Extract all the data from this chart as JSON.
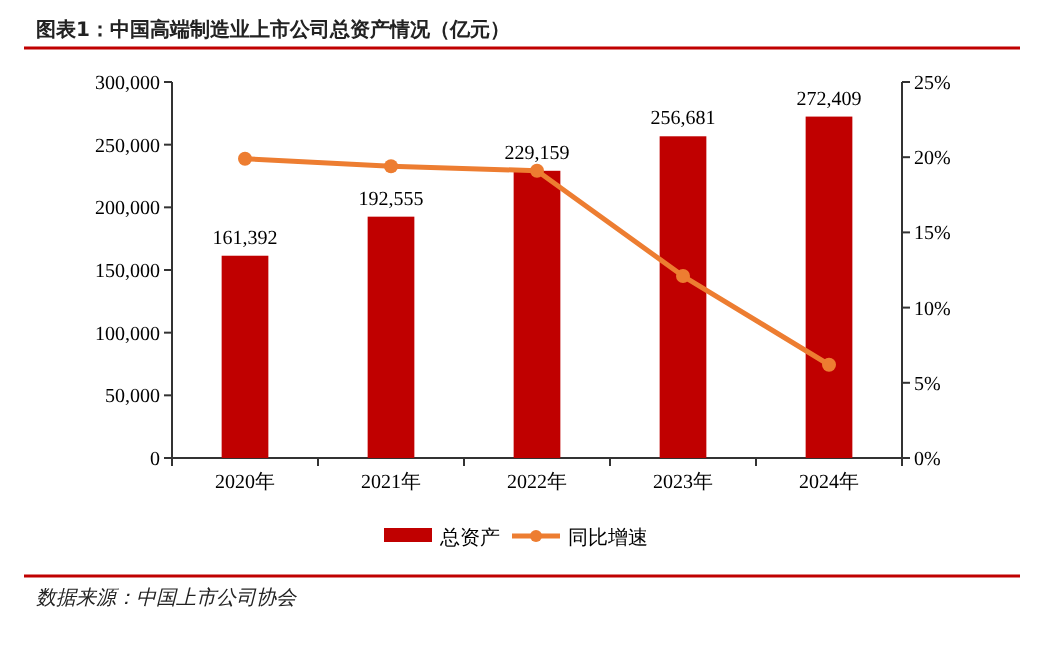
{
  "chart_data": {
    "type": "bar",
    "title": "图表1：中国高端制造业上市公司总资产情况（亿元）",
    "categories": [
      "2020年",
      "2021年",
      "2022年",
      "2023年",
      "2024年"
    ],
    "series": [
      {
        "name": "总资产",
        "color": "#c00000",
        "values": [
          161392,
          192555,
          229159,
          256681,
          272409
        ],
        "value_labels": [
          "161,392",
          "192,555",
          "229,159",
          "256,681",
          "272,409"
        ]
      },
      {
        "name": "同比增速",
        "type": "line",
        "axis": "y2",
        "color": "#ed7d31",
        "marker": "circle",
        "values": [
          19.9,
          19.4,
          19.1,
          12.1,
          6.2
        ]
      }
    ],
    "ylim": [
      0,
      300000
    ],
    "yticks": [
      {
        "value": 0,
        "label": "0"
      },
      {
        "value": 50000,
        "label": "50,000"
      },
      {
        "value": 100000,
        "label": "100,000"
      },
      {
        "value": 150000,
        "label": "150,000"
      },
      {
        "value": 200000,
        "label": "200,000"
      },
      {
        "value": 250000,
        "label": "250,000"
      },
      {
        "value": 300000,
        "label": "300,000"
      }
    ],
    "y2lim": [
      0,
      25
    ],
    "y2ticks": [
      {
        "value": 0,
        "label": "0%"
      },
      {
        "value": 5,
        "label": "5%"
      },
      {
        "value": 10,
        "label": "10%"
      },
      {
        "value": 15,
        "label": "15%"
      },
      {
        "value": 20,
        "label": "20%"
      },
      {
        "value": 25,
        "label": "25%"
      }
    ],
    "grid": false,
    "legend": "bottom",
    "annotations": [
      "数据来源：中国上市公司协会"
    ]
  }
}
